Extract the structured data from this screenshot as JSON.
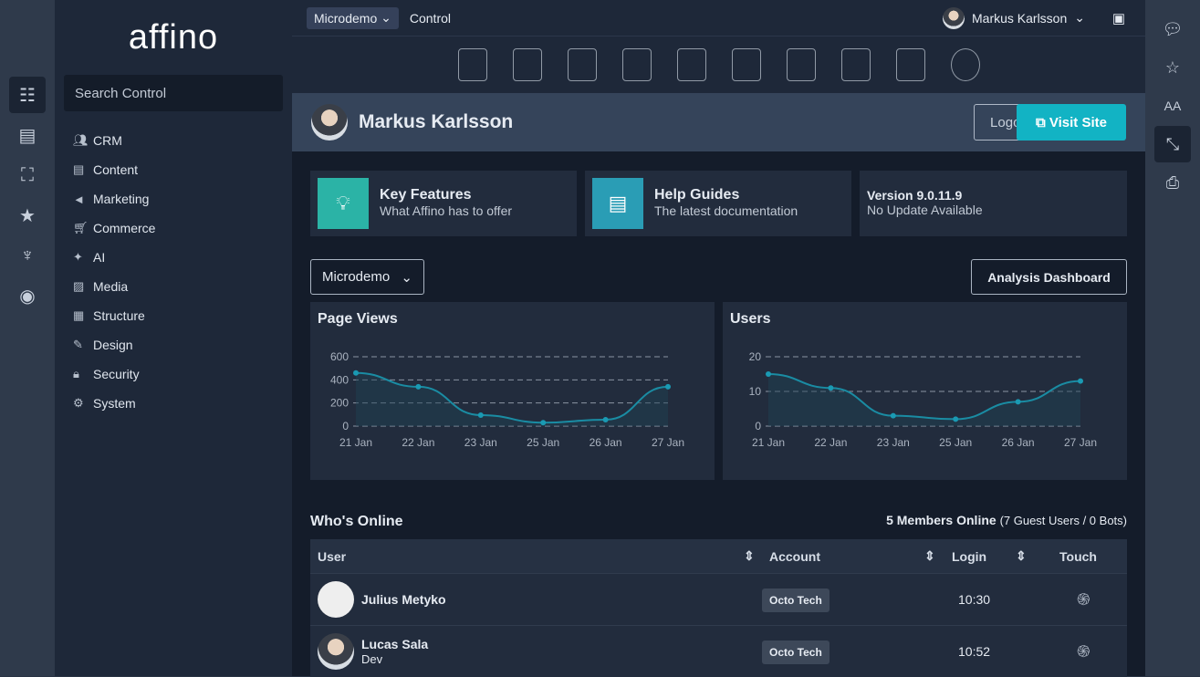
{
  "brand": "affino",
  "search_placeholder": "Search Control",
  "nav": [
    {
      "label": "CRM",
      "icon": "users-icon"
    },
    {
      "label": "Content",
      "icon": "document-icon"
    },
    {
      "label": "Marketing",
      "icon": "megaphone-icon"
    },
    {
      "label": "Commerce",
      "icon": "cart-icon"
    },
    {
      "label": "AI",
      "icon": "sparkle-icon"
    },
    {
      "label": "Media",
      "icon": "image-icon"
    },
    {
      "label": "Structure",
      "icon": "structure-icon"
    },
    {
      "label": "Design",
      "icon": "brush-icon"
    },
    {
      "label": "Security",
      "icon": "lock-icon"
    },
    {
      "label": "System",
      "icon": "gear-icon"
    }
  ],
  "topbar": {
    "site": "Microdemo",
    "section": "Control",
    "user": "Markus Karlsson"
  },
  "profile": {
    "name": "Markus Karlsson",
    "logout": "Logout",
    "visit": "Visit Site"
  },
  "cards": [
    {
      "title": "Key Features",
      "sub": "What Affino has to offer",
      "color": "#2bb3a6"
    },
    {
      "title": "Help Guides",
      "sub": "The latest documentation",
      "color": "#2a9db5"
    },
    {
      "title": "Version 9.0.11.9",
      "sub": "No Update Available"
    }
  ],
  "site_select": "Microdemo",
  "analysis_button": "Analysis Dashboard",
  "chart_data": [
    {
      "type": "line",
      "title": "Page Views",
      "categories": [
        "21 Jan",
        "22 Jan",
        "23 Jan",
        "25 Jan",
        "26 Jan",
        "27 Jan"
      ],
      "values": [
        460,
        340,
        95,
        30,
        55,
        340
      ],
      "yticks": [
        0,
        200,
        400,
        600
      ],
      "ylim": [
        0,
        600
      ]
    },
    {
      "type": "line",
      "title": "Users",
      "categories": [
        "21 Jan",
        "22 Jan",
        "23 Jan",
        "25 Jan",
        "26 Jan",
        "27 Jan"
      ],
      "values": [
        15,
        11,
        3,
        2,
        7,
        13
      ],
      "yticks": [
        0,
        10,
        20
      ],
      "ylim": [
        0,
        20
      ]
    }
  ],
  "online": {
    "title": "Who's Online",
    "count": "5 Members Online",
    "extra": "(7 Guest Users / 0 Bots)",
    "columns": [
      "User",
      "Account",
      "Login",
      "Touch"
    ],
    "rows": [
      {
        "name": "Julius Metyko",
        "role": "",
        "account": "Octo Tech",
        "login": "10:30"
      },
      {
        "name": "Lucas Sala",
        "role": "Dev",
        "account": "Octo Tech",
        "login": "10:52"
      }
    ]
  }
}
